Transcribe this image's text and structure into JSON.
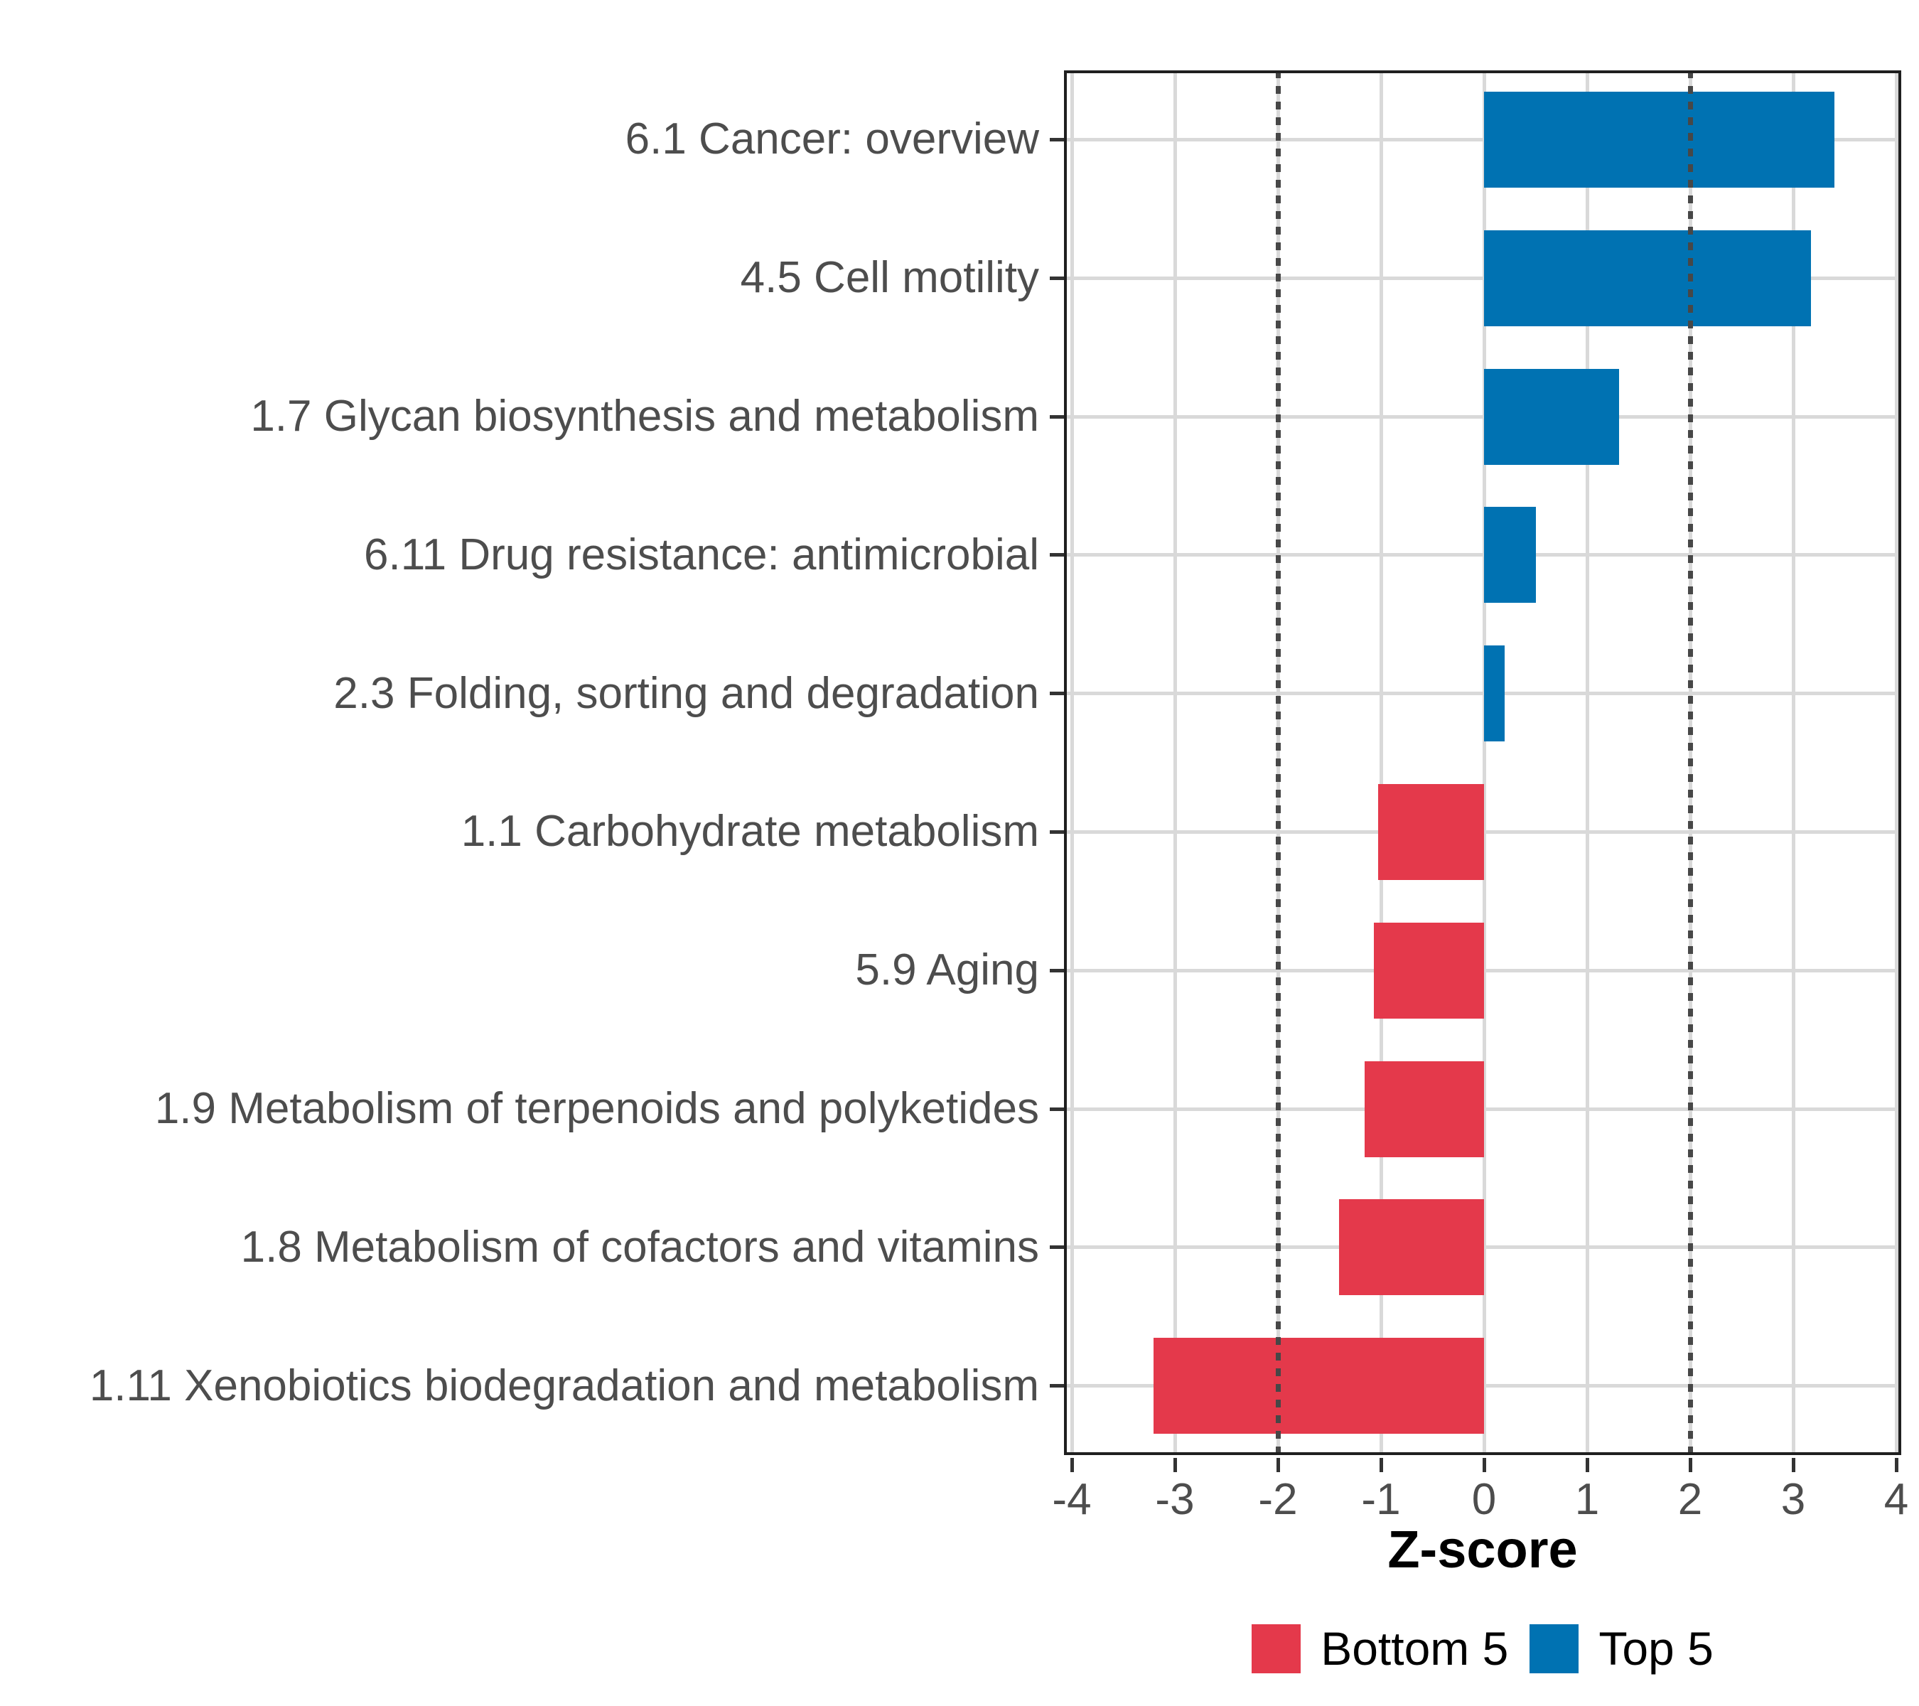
{
  "chart_data": {
    "type": "bar",
    "orientation": "horizontal",
    "xlabel": "Z-score",
    "categories": [
      "6.1 Cancer: overview",
      "4.5 Cell motility",
      "1.7 Glycan biosynthesis and metabolism",
      "6.11 Drug resistance: antimicrobial",
      "2.3 Folding, sorting and degradation",
      "1.1 Carbohydrate metabolism",
      "5.9 Aging",
      "1.9 Metabolism of terpenoids and polyketides",
      "1.8 Metabolism of cofactors and vitamins",
      "1.11 Xenobiotics biodegradation and metabolism"
    ],
    "values": [
      3.4,
      3.17,
      1.31,
      0.5,
      0.2,
      -1.03,
      -1.07,
      -1.16,
      -1.41,
      -3.21
    ],
    "groups": [
      "Top 5",
      "Top 5",
      "Top 5",
      "Top 5",
      "Top 5",
      "Bottom 5",
      "Bottom 5",
      "Bottom 5",
      "Bottom 5",
      "Bottom 5"
    ],
    "colors": {
      "Top 5": "#0072B2",
      "Bottom 5": "#E4394B"
    },
    "x_tick_values": [
      -4,
      -3,
      -2,
      -1,
      0,
      1,
      2,
      3,
      4
    ],
    "x_tick_labels": [
      "-4",
      "-3",
      "-2",
      "-1",
      "0",
      "1",
      "2",
      "3",
      "4"
    ],
    "xlim": [
      -4.08,
      4.05
    ],
    "reference_lines": [
      -2,
      2
    ],
    "grid": "major-x-and-y",
    "legend_position": "bottom",
    "legend": {
      "items": [
        {
          "label": "Bottom 5",
          "color": "#E4394B"
        },
        {
          "label": "Top 5",
          "color": "#0072B2"
        }
      ]
    },
    "style": {
      "grid_color": "#d9d9d9",
      "refline_color": "#474747",
      "axis_text_color": "#4d4d4d",
      "panel_border_color": "#1f1f1f"
    }
  }
}
